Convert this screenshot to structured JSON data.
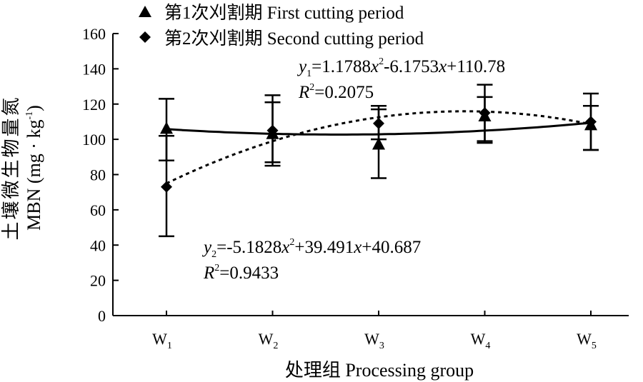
{
  "chart_data": {
    "type": "scatter",
    "ylabel": "土壤微生物量氮 MBN (mg·kg⁻¹)",
    "ylabel_line1": "土壤微生物量氮",
    "ylabel_line2": "MBN (mg · kg",
    "ylabel_unit_sup": "-1",
    "ylabel_close": ")",
    "xlabel": "处理组 Processing group",
    "ylim": [
      0,
      160
    ],
    "yticks": [
      0,
      20,
      40,
      60,
      80,
      100,
      120,
      140,
      160
    ],
    "ytick_labels": [
      "0",
      "20",
      "40",
      "60",
      "80",
      "100",
      "120",
      "140",
      "160"
    ],
    "categories": [
      {
        "base": "W",
        "sub": "1"
      },
      {
        "base": "W",
        "sub": "2"
      },
      {
        "base": "W",
        "sub": "3"
      },
      {
        "base": "W",
        "sub": "4"
      },
      {
        "base": "W",
        "sub": "5"
      }
    ],
    "legend_position": "top-left",
    "series": [
      {
        "name": "第1次刈割期 First cutting period",
        "marker": "triangle",
        "values": [
          106,
          103,
          97,
          113,
          108
        ],
        "err_low": [
          88,
          85,
          78,
          98,
          94
        ],
        "err_high": [
          123,
          121,
          117,
          131,
          126
        ],
        "trend": "solid",
        "equation": {
          "var": "y",
          "sub": "1",
          "rhs_parts": [
            "=1.1788",
            "x",
            "2",
            "-6.1753",
            "x",
            "+110.78"
          ],
          "r2_label": "R",
          "r2_sup": "2",
          "r2_value": "=0.2075"
        }
      },
      {
        "name": "第2次刈割期 Second cutting period",
        "marker": "diamond",
        "values": [
          73,
          105,
          109,
          115,
          110
        ],
        "err_low": [
          45,
          87,
          100,
          99,
          94
        ],
        "err_high": [
          102,
          125,
          119,
          124,
          119
        ],
        "trend": "dashed",
        "equation": {
          "var": "y",
          "sub": "2",
          "rhs_parts": [
            "=-5.1828",
            "x",
            "2",
            "+39.491",
            "x",
            "+40.687"
          ],
          "r2_label": "R",
          "r2_sup": "2",
          "r2_value": "=0.9433"
        }
      }
    ],
    "trendlines": [
      {
        "series": 0,
        "coefficients": [
          1.1788,
          -6.1753,
          110.78
        ]
      },
      {
        "series": 1,
        "coefficients": [
          -5.1828,
          39.491,
          40.687
        ]
      }
    ]
  }
}
